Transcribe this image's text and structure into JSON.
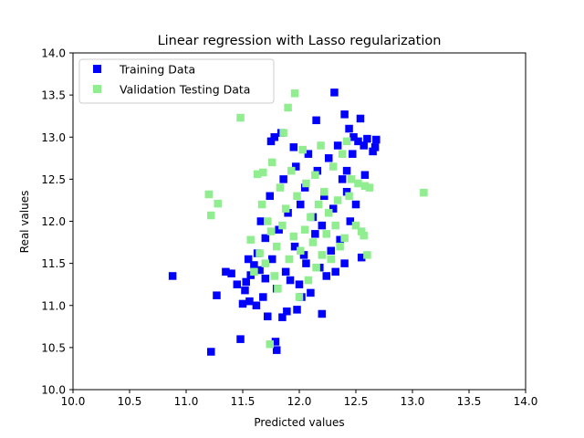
{
  "chart_data": {
    "type": "scatter",
    "title": "Linear regression with Lasso regularization",
    "xlabel": "Predicted values",
    "ylabel": "Real values",
    "xlim": [
      10.0,
      14.0
    ],
    "ylim": [
      10.0,
      14.0
    ],
    "x_ticks": [
      "10.0",
      "10.5",
      "11.0",
      "11.5",
      "12.0",
      "12.5",
      "13.0",
      "13.5",
      "14.0"
    ],
    "y_ticks": [
      "10.0",
      "10.5",
      "11.0",
      "11.5",
      "12.0",
      "12.5",
      "13.0",
      "13.5",
      "14.0"
    ],
    "grid": false,
    "legend_position": "upper-left",
    "marker": "square",
    "cluster_note": "Dense central cluster of several hundred points per series spanning roughly x 11.6–12.5, y 11.2–12.9; individual values there are not legible, only the distinguishable points are listed.",
    "series": [
      {
        "name": "Training Data",
        "color": "#0000ff",
        "points": [
          [
            10.88,
            11.35
          ],
          [
            11.22,
            10.45
          ],
          [
            11.27,
            11.12
          ],
          [
            11.35,
            11.4
          ],
          [
            11.4,
            11.38
          ],
          [
            11.45,
            11.25
          ],
          [
            11.48,
            10.6
          ],
          [
            11.5,
            11.02
          ],
          [
            11.52,
            11.18
          ],
          [
            11.53,
            11.28
          ],
          [
            11.55,
            11.55
          ],
          [
            11.56,
            11.05
          ],
          [
            11.57,
            11.36
          ],
          [
            11.6,
            11.48
          ],
          [
            11.62,
            11.0
          ],
          [
            11.63,
            11.62
          ],
          [
            11.65,
            11.42
          ],
          [
            11.66,
            12.0
          ],
          [
            11.68,
            11.1
          ],
          [
            11.7,
            11.32
          ],
          [
            11.7,
            11.8
          ],
          [
            11.72,
            10.87
          ],
          [
            11.74,
            12.3
          ],
          [
            11.75,
            12.95
          ],
          [
            11.76,
            11.55
          ],
          [
            11.78,
            13.0
          ],
          [
            11.79,
            10.57
          ],
          [
            11.8,
            10.47
          ],
          [
            11.8,
            11.2
          ],
          [
            11.82,
            11.9
          ],
          [
            11.84,
            13.05
          ],
          [
            11.85,
            10.86
          ],
          [
            11.86,
            12.5
          ],
          [
            11.88,
            11.4
          ],
          [
            11.89,
            10.93
          ],
          [
            11.9,
            12.1
          ],
          [
            11.92,
            11.3
          ],
          [
            11.95,
            12.88
          ],
          [
            11.96,
            11.7
          ],
          [
            11.97,
            12.65
          ],
          [
            11.98,
            10.95
          ],
          [
            12.0,
            11.25
          ],
          [
            12.01,
            12.2
          ],
          [
            12.02,
            11.1
          ],
          [
            12.04,
            11.6
          ],
          [
            12.05,
            12.4
          ],
          [
            12.06,
            11.5
          ],
          [
            12.08,
            12.8
          ],
          [
            12.1,
            11.15
          ],
          [
            12.12,
            12.05
          ],
          [
            12.14,
            11.85
          ],
          [
            12.15,
            13.2
          ],
          [
            12.16,
            12.6
          ],
          [
            12.18,
            11.45
          ],
          [
            12.2,
            10.9
          ],
          [
            12.2,
            11.95
          ],
          [
            12.22,
            12.3
          ],
          [
            12.24,
            11.35
          ],
          [
            12.26,
            12.75
          ],
          [
            12.28,
            11.65
          ],
          [
            12.3,
            12.15
          ],
          [
            12.32,
            11.4
          ],
          [
            12.34,
            12.9
          ],
          [
            12.36,
            11.78
          ],
          [
            12.38,
            12.5
          ],
          [
            12.4,
            11.5
          ],
          [
            12.42,
            12.35
          ],
          [
            12.44,
            13.1
          ],
          [
            12.45,
            12.0
          ],
          [
            12.47,
            12.8
          ],
          [
            12.48,
            13.0
          ],
          [
            12.5,
            12.2
          ],
          [
            12.52,
            12.95
          ],
          [
            12.54,
            13.22
          ],
          [
            12.55,
            11.57
          ],
          [
            12.57,
            12.9
          ],
          [
            12.58,
            12.55
          ],
          [
            12.6,
            12.98
          ],
          [
            12.65,
            12.83
          ],
          [
            12.67,
            12.88
          ],
          [
            12.68,
            12.97
          ],
          [
            12.31,
            13.53
          ],
          [
            12.4,
            13.27
          ],
          [
            12.42,
            12.6
          ]
        ]
      },
      {
        "name": "Validation Testing Data",
        "color": "#90ee90",
        "points": [
          [
            11.2,
            12.32
          ],
          [
            11.22,
            12.07
          ],
          [
            11.28,
            12.21
          ],
          [
            11.48,
            13.23
          ],
          [
            11.57,
            11.78
          ],
          [
            11.6,
            11.4
          ],
          [
            11.63,
            12.56
          ],
          [
            11.65,
            11.62
          ],
          [
            11.67,
            12.2
          ],
          [
            11.68,
            12.58
          ],
          [
            11.7,
            11.5
          ],
          [
            11.72,
            12.0
          ],
          [
            11.74,
            10.54
          ],
          [
            11.75,
            11.88
          ],
          [
            11.76,
            12.7
          ],
          [
            11.78,
            11.35
          ],
          [
            11.8,
            11.7
          ],
          [
            11.81,
            11.2
          ],
          [
            11.83,
            12.4
          ],
          [
            11.85,
            11.95
          ],
          [
            11.86,
            13.05
          ],
          [
            11.88,
            12.15
          ],
          [
            11.9,
            13.35
          ],
          [
            11.91,
            11.55
          ],
          [
            11.93,
            12.6
          ],
          [
            11.95,
            11.82
          ],
          [
            11.96,
            13.52
          ],
          [
            11.98,
            12.3
          ],
          [
            12.0,
            11.1
          ],
          [
            12.01,
            11.65
          ],
          [
            12.03,
            12.85
          ],
          [
            12.05,
            11.9
          ],
          [
            12.06,
            12.45
          ],
          [
            12.08,
            11.3
          ],
          [
            12.1,
            12.05
          ],
          [
            12.12,
            11.75
          ],
          [
            12.14,
            12.55
          ],
          [
            12.15,
            11.45
          ],
          [
            12.17,
            12.2
          ],
          [
            12.19,
            12.9
          ],
          [
            12.2,
            11.6
          ],
          [
            12.22,
            12.35
          ],
          [
            12.24,
            11.85
          ],
          [
            12.26,
            12.1
          ],
          [
            12.28,
            11.55
          ],
          [
            12.3,
            12.65
          ],
          [
            12.32,
            11.95
          ],
          [
            12.34,
            12.25
          ],
          [
            12.36,
            11.7
          ],
          [
            12.38,
            12.8
          ],
          [
            12.4,
            11.8
          ],
          [
            12.42,
            12.95
          ],
          [
            12.44,
            12.3
          ],
          [
            12.46,
            12.5
          ],
          [
            12.5,
            11.95
          ],
          [
            12.52,
            12.45
          ],
          [
            12.55,
            11.88
          ],
          [
            12.57,
            11.83
          ],
          [
            12.58,
            12.42
          ],
          [
            12.6,
            11.6
          ],
          [
            12.62,
            12.4
          ],
          [
            13.1,
            12.34
          ]
        ]
      }
    ]
  }
}
